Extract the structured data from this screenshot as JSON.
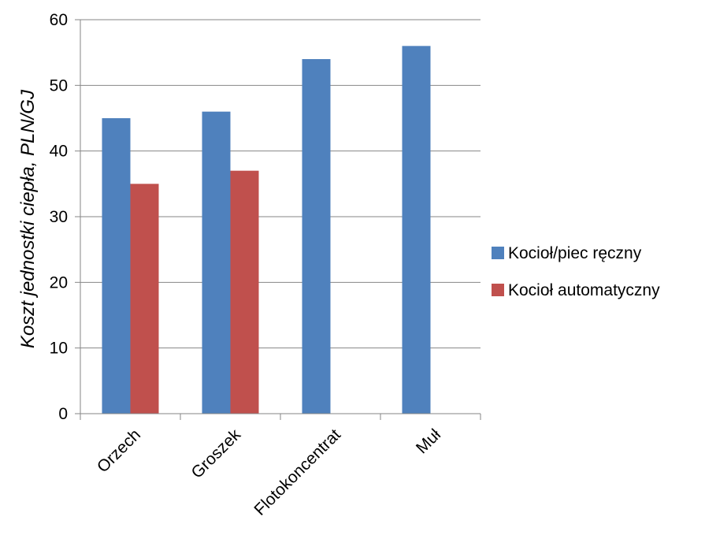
{
  "chart_data": {
    "type": "bar",
    "categories": [
      "Orzech",
      "Groszek",
      "Flotokoncentrat",
      "Muł"
    ],
    "series": [
      {
        "name": "Kocioł/piec ręczny",
        "values": [
          45,
          46,
          54,
          56
        ],
        "color": "#4F81BD"
      },
      {
        "name": "Kocioł automatyczny",
        "values": [
          35,
          37,
          null,
          null
        ],
        "color": "#C0504D"
      }
    ],
    "title": "",
    "xlabel": "",
    "ylabel": "Koszt jednostki ciepła, PLN/GJ",
    "ylim": [
      0,
      60
    ],
    "yticks": [
      0,
      10,
      20,
      30,
      40,
      50,
      60
    ],
    "grid": true,
    "legend_position": "right"
  }
}
